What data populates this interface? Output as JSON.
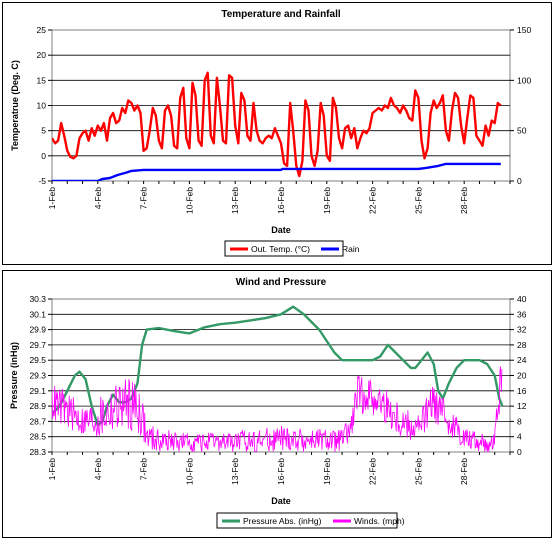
{
  "chart_data": [
    {
      "type": "line",
      "title": "Temperature and Rainfall",
      "xlabel": "Date",
      "ylabel": "Temperatrue (Deg. C)",
      "y2label": "",
      "ylim": [
        -5,
        25
      ],
      "y2lim": [
        0,
        150
      ],
      "yticks": [
        "-5",
        "0",
        "5",
        "10",
        "15",
        "20",
        "25"
      ],
      "y2ticks": [
        "0",
        "50",
        "100",
        "150"
      ],
      "xticks": [
        "1-Feb",
        "4-Feb",
        "7-Feb",
        "10-Feb",
        "13-Feb",
        "16-Feb",
        "19-Feb",
        "22-Feb",
        "25-Feb",
        "28-Feb"
      ],
      "xrange_days": [
        1,
        31
      ],
      "grid": true,
      "legend": "bottom",
      "series": [
        {
          "name": "Out. Temp. (°C)",
          "color": "#ff0000",
          "axis": "left",
          "points": [
            [
              1.0,
              3.5
            ],
            [
              1.2,
              2.5
            ],
            [
              1.4,
              3.0
            ],
            [
              1.6,
              6.5
            ],
            [
              1.8,
              4.0
            ],
            [
              2.0,
              1.0
            ],
            [
              2.2,
              -0.2
            ],
            [
              2.4,
              -0.5
            ],
            [
              2.6,
              0.0
            ],
            [
              2.8,
              3.5
            ],
            [
              3.0,
              4.5
            ],
            [
              3.2,
              5.0
            ],
            [
              3.4,
              3.0
            ],
            [
              3.6,
              5.5
            ],
            [
              3.8,
              4.0
            ],
            [
              4.0,
              6.0
            ],
            [
              4.2,
              5.0
            ],
            [
              4.4,
              6.5
            ],
            [
              4.6,
              3.0
            ],
            [
              4.8,
              7.5
            ],
            [
              5.0,
              8.5
            ],
            [
              5.2,
              6.5
            ],
            [
              5.4,
              7.0
            ],
            [
              5.6,
              9.5
            ],
            [
              5.8,
              8.5
            ],
            [
              6.0,
              11.0
            ],
            [
              6.2,
              10.5
            ],
            [
              6.4,
              9.0
            ],
            [
              6.6,
              10.0
            ],
            [
              6.8,
              8.5
            ],
            [
              7.0,
              1.0
            ],
            [
              7.2,
              1.5
            ],
            [
              7.4,
              5.0
            ],
            [
              7.6,
              9.5
            ],
            [
              7.8,
              8.0
            ],
            [
              8.0,
              3.0
            ],
            [
              8.2,
              1.5
            ],
            [
              8.4,
              9.0
            ],
            [
              8.6,
              10.0
            ],
            [
              8.8,
              8.0
            ],
            [
              9.0,
              2.0
            ],
            [
              9.2,
              1.5
            ],
            [
              9.4,
              11.5
            ],
            [
              9.6,
              13.5
            ],
            [
              9.8,
              3.5
            ],
            [
              10.0,
              1.5
            ],
            [
              10.2,
              14.5
            ],
            [
              10.4,
              12.0
            ],
            [
              10.6,
              3.0
            ],
            [
              10.8,
              2.0
            ],
            [
              11.0,
              15.0
            ],
            [
              11.2,
              16.5
            ],
            [
              11.4,
              4.0
            ],
            [
              11.6,
              2.5
            ],
            [
              11.8,
              15.5
            ],
            [
              12.0,
              10.0
            ],
            [
              12.2,
              3.0
            ],
            [
              12.4,
              2.5
            ],
            [
              12.6,
              16.0
            ],
            [
              12.8,
              15.5
            ],
            [
              13.0,
              6.0
            ],
            [
              13.2,
              2.5
            ],
            [
              13.4,
              12.5
            ],
            [
              13.6,
              11.0
            ],
            [
              13.8,
              4.0
            ],
            [
              14.0,
              3.0
            ],
            [
              14.2,
              10.5
            ],
            [
              14.4,
              5.0
            ],
            [
              14.6,
              3.0
            ],
            [
              14.8,
              2.5
            ],
            [
              15.0,
              3.5
            ],
            [
              15.2,
              4.0
            ],
            [
              15.4,
              3.5
            ],
            [
              15.6,
              5.5
            ],
            [
              15.8,
              4.0
            ],
            [
              16.0,
              2.5
            ],
            [
              16.2,
              -1.5
            ],
            [
              16.4,
              -2.0
            ],
            [
              16.6,
              10.5
            ],
            [
              16.8,
              5.0
            ],
            [
              17.0,
              -2.0
            ],
            [
              17.2,
              -4.0
            ],
            [
              17.4,
              -1.0
            ],
            [
              17.6,
              11.0
            ],
            [
              17.8,
              9.0
            ],
            [
              18.0,
              0.0
            ],
            [
              18.2,
              -2.0
            ],
            [
              18.4,
              1.0
            ],
            [
              18.6,
              10.5
            ],
            [
              18.8,
              8.0
            ],
            [
              19.0,
              0.0
            ],
            [
              19.2,
              -1.0
            ],
            [
              19.4,
              11.5
            ],
            [
              19.6,
              9.5
            ],
            [
              19.8,
              3.5
            ],
            [
              20.0,
              1.5
            ],
            [
              20.2,
              5.5
            ],
            [
              20.4,
              6.0
            ],
            [
              20.6,
              3.5
            ],
            [
              20.8,
              5.5
            ],
            [
              21.0,
              1.5
            ],
            [
              21.2,
              3.5
            ],
            [
              21.4,
              5.0
            ],
            [
              21.6,
              4.5
            ],
            [
              21.8,
              5.5
            ],
            [
              22.0,
              8.5
            ],
            [
              22.2,
              9.0
            ],
            [
              22.4,
              9.5
            ],
            [
              22.6,
              9.0
            ],
            [
              22.8,
              10.0
            ],
            [
              23.0,
              9.5
            ],
            [
              23.2,
              11.5
            ],
            [
              23.4,
              10.0
            ],
            [
              23.6,
              9.5
            ],
            [
              23.8,
              8.5
            ],
            [
              24.0,
              10.0
            ],
            [
              24.2,
              9.0
            ],
            [
              24.4,
              7.5
            ],
            [
              24.6,
              7.0
            ],
            [
              24.8,
              13.0
            ],
            [
              25.0,
              11.5
            ],
            [
              25.2,
              3.0
            ],
            [
              25.4,
              -0.5
            ],
            [
              25.6,
              1.5
            ],
            [
              25.8,
              8.5
            ],
            [
              26.0,
              11.0
            ],
            [
              26.2,
              9.5
            ],
            [
              26.4,
              10.5
            ],
            [
              26.6,
              12.0
            ],
            [
              26.8,
              5.0
            ],
            [
              27.0,
              3.0
            ],
            [
              27.2,
              9.0
            ],
            [
              27.4,
              12.5
            ],
            [
              27.6,
              11.5
            ],
            [
              27.8,
              6.0
            ],
            [
              28.0,
              2.5
            ],
            [
              28.2,
              7.5
            ],
            [
              28.4,
              12.0
            ],
            [
              28.6,
              11.5
            ],
            [
              28.8,
              4.0
            ],
            [
              29.0,
              3.0
            ],
            [
              29.2,
              2.0
            ],
            [
              29.4,
              6.0
            ],
            [
              29.6,
              4.0
            ],
            [
              29.8,
              7.0
            ],
            [
              30.0,
              6.5
            ],
            [
              30.2,
              10.5
            ],
            [
              30.4,
              10.0
            ]
          ]
        },
        {
          "name": "Rain",
          "color": "#0000ff",
          "axis": "right",
          "points": [
            [
              1.0,
              0
            ],
            [
              4.0,
              0
            ],
            [
              4.3,
              2
            ],
            [
              4.8,
              3
            ],
            [
              5.3,
              6
            ],
            [
              5.8,
              8
            ],
            [
              6.2,
              10
            ],
            [
              7.0,
              11
            ],
            [
              16.0,
              11
            ],
            [
              30.4,
              11
            ],
            [
              16.1,
              12
            ],
            [
              25.0,
              12
            ],
            [
              25.5,
              13
            ],
            [
              26.3,
              15
            ],
            [
              26.8,
              17
            ],
            [
              30.4,
              17
            ]
          ]
        }
      ]
    },
    {
      "type": "line",
      "title": "Wind and Pressure",
      "xlabel": "Date",
      "ylabel": "Pressure (inHg)",
      "ylim": [
        28.3,
        30.3
      ],
      "y2lim": [
        0,
        40
      ],
      "yticks": [
        "28.3",
        "28.5",
        "28.7",
        "28.9",
        "29.1",
        "29.3",
        "29.5",
        "29.7",
        "29.9",
        "30.1",
        "30.3"
      ],
      "y2ticks": [
        "0",
        "4",
        "8",
        "12",
        "16",
        "20",
        "24",
        "28",
        "32",
        "36",
        "40"
      ],
      "xticks": [
        "1-Feb",
        "4-Feb",
        "7-Feb",
        "10-Feb",
        "13-Feb",
        "16-Feb",
        "19-Feb",
        "22-Feb",
        "25-Feb",
        "28-Feb"
      ],
      "xrange_days": [
        1,
        31
      ],
      "grid": true,
      "legend": "bottom",
      "series": [
        {
          "name": "Pressure Abs. (inHg)",
          "color": "#339966",
          "axis": "left",
          "points": [
            [
              1.0,
              28.8
            ],
            [
              1.5,
              28.9
            ],
            [
              2.0,
              29.1
            ],
            [
              2.5,
              29.3
            ],
            [
              2.8,
              29.35
            ],
            [
              3.2,
              29.25
            ],
            [
              3.6,
              28.9
            ],
            [
              4.0,
              28.65
            ],
            [
              4.3,
              28.7
            ],
            [
              4.6,
              28.9
            ],
            [
              5.0,
              29.05
            ],
            [
              5.4,
              28.95
            ],
            [
              5.8,
              28.95
            ],
            [
              6.2,
              29.0
            ],
            [
              6.6,
              29.2
            ],
            [
              6.9,
              29.7
            ],
            [
              7.2,
              29.9
            ],
            [
              8.0,
              29.92
            ],
            [
              9.0,
              29.88
            ],
            [
              10.0,
              29.85
            ],
            [
              11.0,
              29.93
            ],
            [
              12.0,
              29.97
            ],
            [
              13.0,
              29.99
            ],
            [
              14.0,
              30.02
            ],
            [
              15.0,
              30.05
            ],
            [
              16.0,
              30.1
            ],
            [
              16.8,
              30.2
            ],
            [
              17.5,
              30.1
            ],
            [
              18.0,
              30.0
            ],
            [
              18.5,
              29.9
            ],
            [
              19.0,
              29.75
            ],
            [
              19.5,
              29.6
            ],
            [
              20.0,
              29.5
            ],
            [
              21.0,
              29.5
            ],
            [
              22.0,
              29.5
            ],
            [
              22.5,
              29.55
            ],
            [
              23.0,
              29.7
            ],
            [
              23.5,
              29.6
            ],
            [
              24.0,
              29.5
            ],
            [
              24.5,
              29.4
            ],
            [
              24.8,
              29.4
            ],
            [
              25.2,
              29.5
            ],
            [
              25.6,
              29.6
            ],
            [
              26.0,
              29.45
            ],
            [
              26.3,
              29.1
            ],
            [
              26.6,
              29.0
            ],
            [
              27.0,
              29.2
            ],
            [
              27.5,
              29.4
            ],
            [
              28.0,
              29.5
            ],
            [
              29.0,
              29.5
            ],
            [
              29.5,
              29.45
            ],
            [
              30.0,
              29.3
            ],
            [
              30.3,
              29.0
            ],
            [
              30.5,
              28.9
            ]
          ]
        },
        {
          "name": "Winds. (mph)",
          "color": "#ff00ff",
          "axis": "right",
          "noisy": true,
          "envelope": [
            [
              1.0,
              8,
              18
            ],
            [
              2.0,
              6,
              16
            ],
            [
              3.0,
              4,
              12
            ],
            [
              4.0,
              3,
              14
            ],
            [
              5.0,
              5,
              18
            ],
            [
              6.0,
              6,
              20
            ],
            [
              6.8,
              4,
              18
            ],
            [
              7.2,
              0,
              8
            ],
            [
              8.0,
              0,
              6
            ],
            [
              10.0,
              0,
              5
            ],
            [
              12.0,
              0,
              5
            ],
            [
              14.0,
              0,
              6
            ],
            [
              16.0,
              0,
              7
            ],
            [
              18.0,
              0,
              6
            ],
            [
              20.0,
              0,
              6
            ],
            [
              20.6,
              2,
              10
            ],
            [
              21.0,
              10,
              20
            ],
            [
              22.0,
              10,
              20
            ],
            [
              23.0,
              6,
              16
            ],
            [
              24.0,
              3,
              12
            ],
            [
              25.0,
              2,
              10
            ],
            [
              26.0,
              8,
              18
            ],
            [
              27.0,
              4,
              12
            ],
            [
              28.0,
              1,
              7
            ],
            [
              29.0,
              0,
              5
            ],
            [
              29.8,
              0,
              4
            ],
            [
              30.2,
              4,
              18
            ],
            [
              30.4,
              10,
              27
            ],
            [
              30.5,
              12,
              20
            ]
          ]
        }
      ]
    }
  ]
}
